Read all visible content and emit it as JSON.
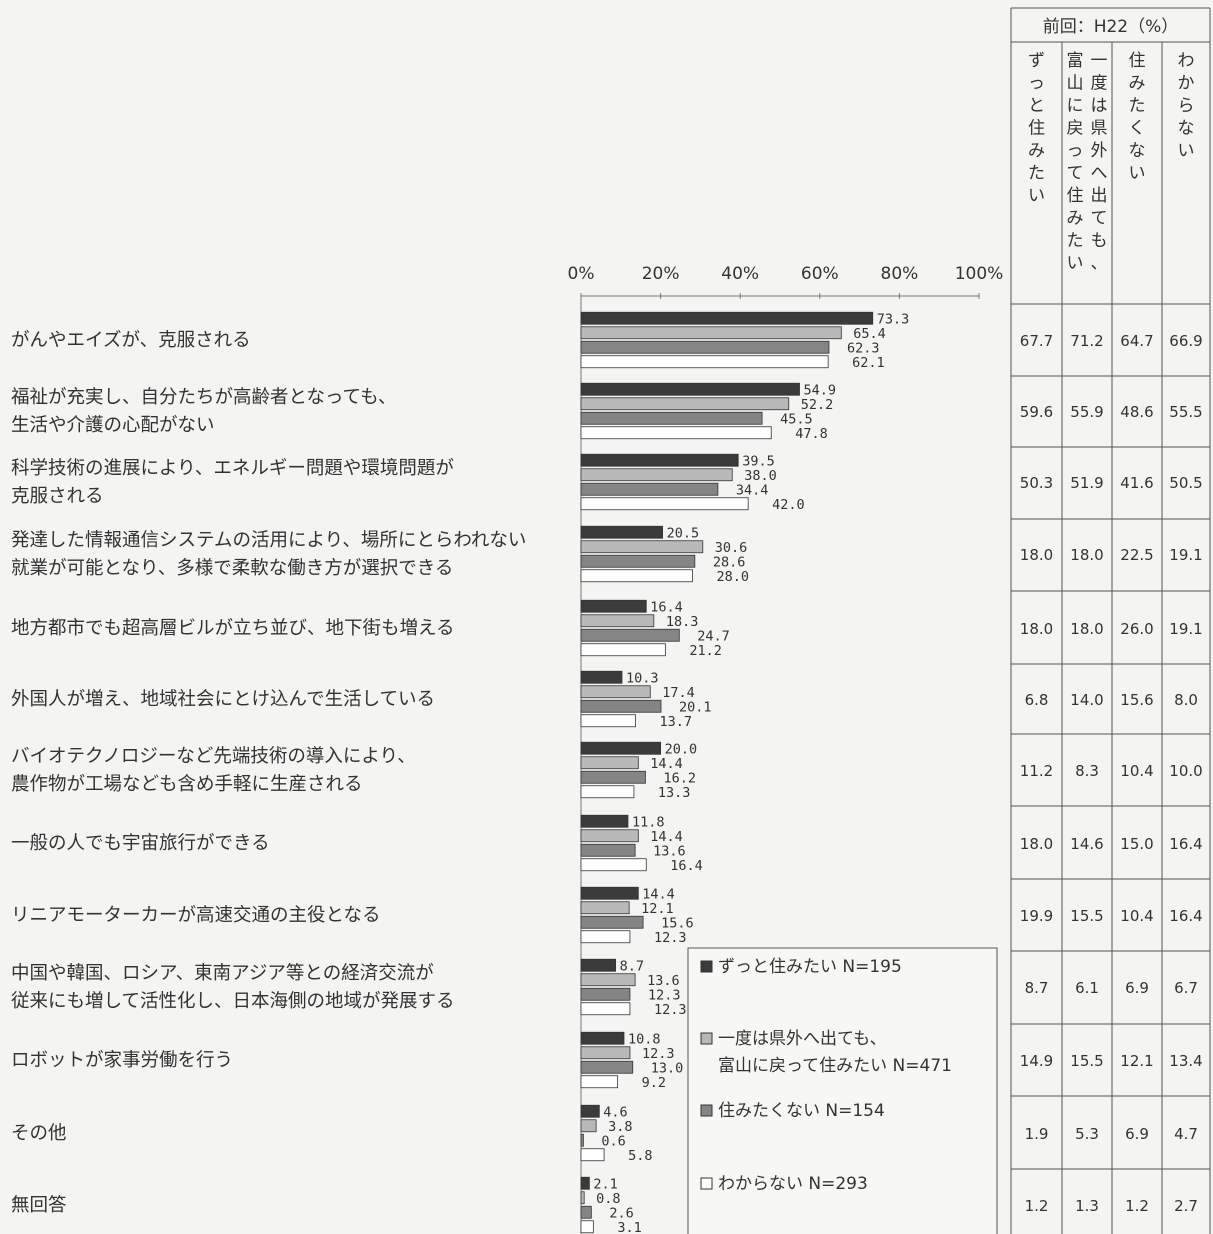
{
  "chart_data": {
    "type": "bar",
    "orientation": "horizontal",
    "categories": [
      [
        "がんやエイズが、克服される"
      ],
      [
        "福祉が充実し、自分たちが高齢者となっても、",
        "生活や介護の心配がない"
      ],
      [
        "科学技術の進展により、エネルギー問題や環境問題が",
        "克服される"
      ],
      [
        "発達した情報通信システムの活用により、場所にとらわれない",
        "就業が可能となり、多様で柔軟な働き方が選択できる"
      ],
      [
        "地方都市でも超高層ビルが立ち並び、地下街も増える"
      ],
      [
        "外国人が増え、地域社会にとけ込んで生活している"
      ],
      [
        "バイオテクノロジーなど先端技術の導入により、",
        "農作物が工場なども含め手軽に生産される"
      ],
      [
        "一般の人でも宇宙旅行ができる"
      ],
      [
        "リニアモーターカーが高速交通の主役となる"
      ],
      [
        "中国や韓国、ロシア、東南アジア等との経済交流が",
        "従来にも増して活性化し、日本海側の地域が発展する"
      ],
      [
        "ロボットが家事労働を行う"
      ],
      [
        "その他"
      ],
      [
        "無回答"
      ]
    ],
    "series": [
      {
        "name": "ずっと住みたい",
        "n": "N=195",
        "color": "#3b3b3b",
        "values": [
          "73.3",
          "54.9",
          "39.5",
          "20.5",
          "16.4",
          "10.3",
          "20.0",
          "11.8",
          "14.4",
          "8.7",
          "10.8",
          "4.6",
          "2.1"
        ]
      },
      {
        "name": "一度は県外へ出ても、富山に戻って住みたい",
        "name_lines": [
          "一度は県外へ出ても、",
          "富山に戻って住みたい"
        ],
        "n": "N=471",
        "color": "#b9b9b9",
        "values": [
          "65.4",
          "52.2",
          "38.0",
          "30.6",
          "18.3",
          "17.4",
          "14.4",
          "14.4",
          "12.1",
          "13.6",
          "12.3",
          "3.8",
          "0.8"
        ]
      },
      {
        "name": "住みたくない",
        "n": "N=154",
        "color": "#858585",
        "values": [
          "62.3",
          "45.5",
          "34.4",
          "28.6",
          "24.7",
          "20.1",
          "16.2",
          "13.6",
          "15.6",
          "12.3",
          "13.0",
          "0.6",
          "2.6"
        ]
      },
      {
        "name": "わからない",
        "n": "N=293",
        "color": "#ffffff",
        "values": [
          "62.1",
          "47.8",
          "42.0",
          "28.0",
          "21.2",
          "13.7",
          "13.3",
          "16.4",
          "12.3",
          "12.3",
          "9.2",
          "5.8",
          "3.1"
        ]
      }
    ],
    "xlim": [
      0,
      100
    ],
    "x_ticks": [
      "0%",
      "20%",
      "40%",
      "60%",
      "80%",
      "100%"
    ],
    "legend_position": "bottom-right",
    "previous_table": {
      "title": "前回：H22（%）",
      "columns": [
        [
          "ず",
          "っ",
          "と",
          "住",
          "み",
          "た",
          "い"
        ],
        [
          "富",
          "山",
          "に",
          "戻",
          "っ",
          "て",
          "住",
          "み",
          "た",
          "い"
        ],
        [
          "一",
          "度",
          "は",
          "県",
          "外",
          "へ",
          "出",
          "て",
          "も",
          "、"
        ],
        [
          "住",
          "み",
          "た",
          "く",
          "な",
          "い"
        ],
        [
          "わ",
          "か",
          "ら",
          "な",
          "い"
        ]
      ],
      "rows": [
        [
          "67.7",
          "71.2",
          "64.7",
          "66.9"
        ],
        [
          "59.6",
          "55.9",
          "48.6",
          "55.5"
        ],
        [
          "50.3",
          "51.9",
          "41.6",
          "50.5"
        ],
        [
          "18.0",
          "18.0",
          "22.5",
          "19.1"
        ],
        [
          "18.0",
          "18.0",
          "26.0",
          "19.1"
        ],
        [
          "6.8",
          "14.0",
          "15.6",
          "8.0"
        ],
        [
          "11.2",
          "8.3",
          "10.4",
          "10.0"
        ],
        [
          "18.0",
          "14.6",
          "15.0",
          "16.4"
        ],
        [
          "19.9",
          "15.5",
          "10.4",
          "16.4"
        ],
        [
          "8.7",
          "6.1",
          "6.9",
          "6.7"
        ],
        [
          "14.9",
          "15.5",
          "12.1",
          "13.4"
        ],
        [
          "1.9",
          "5.3",
          "6.9",
          "4.7"
        ],
        [
          "1.2",
          "1.3",
          "1.2",
          "2.7"
        ]
      ]
    }
  }
}
